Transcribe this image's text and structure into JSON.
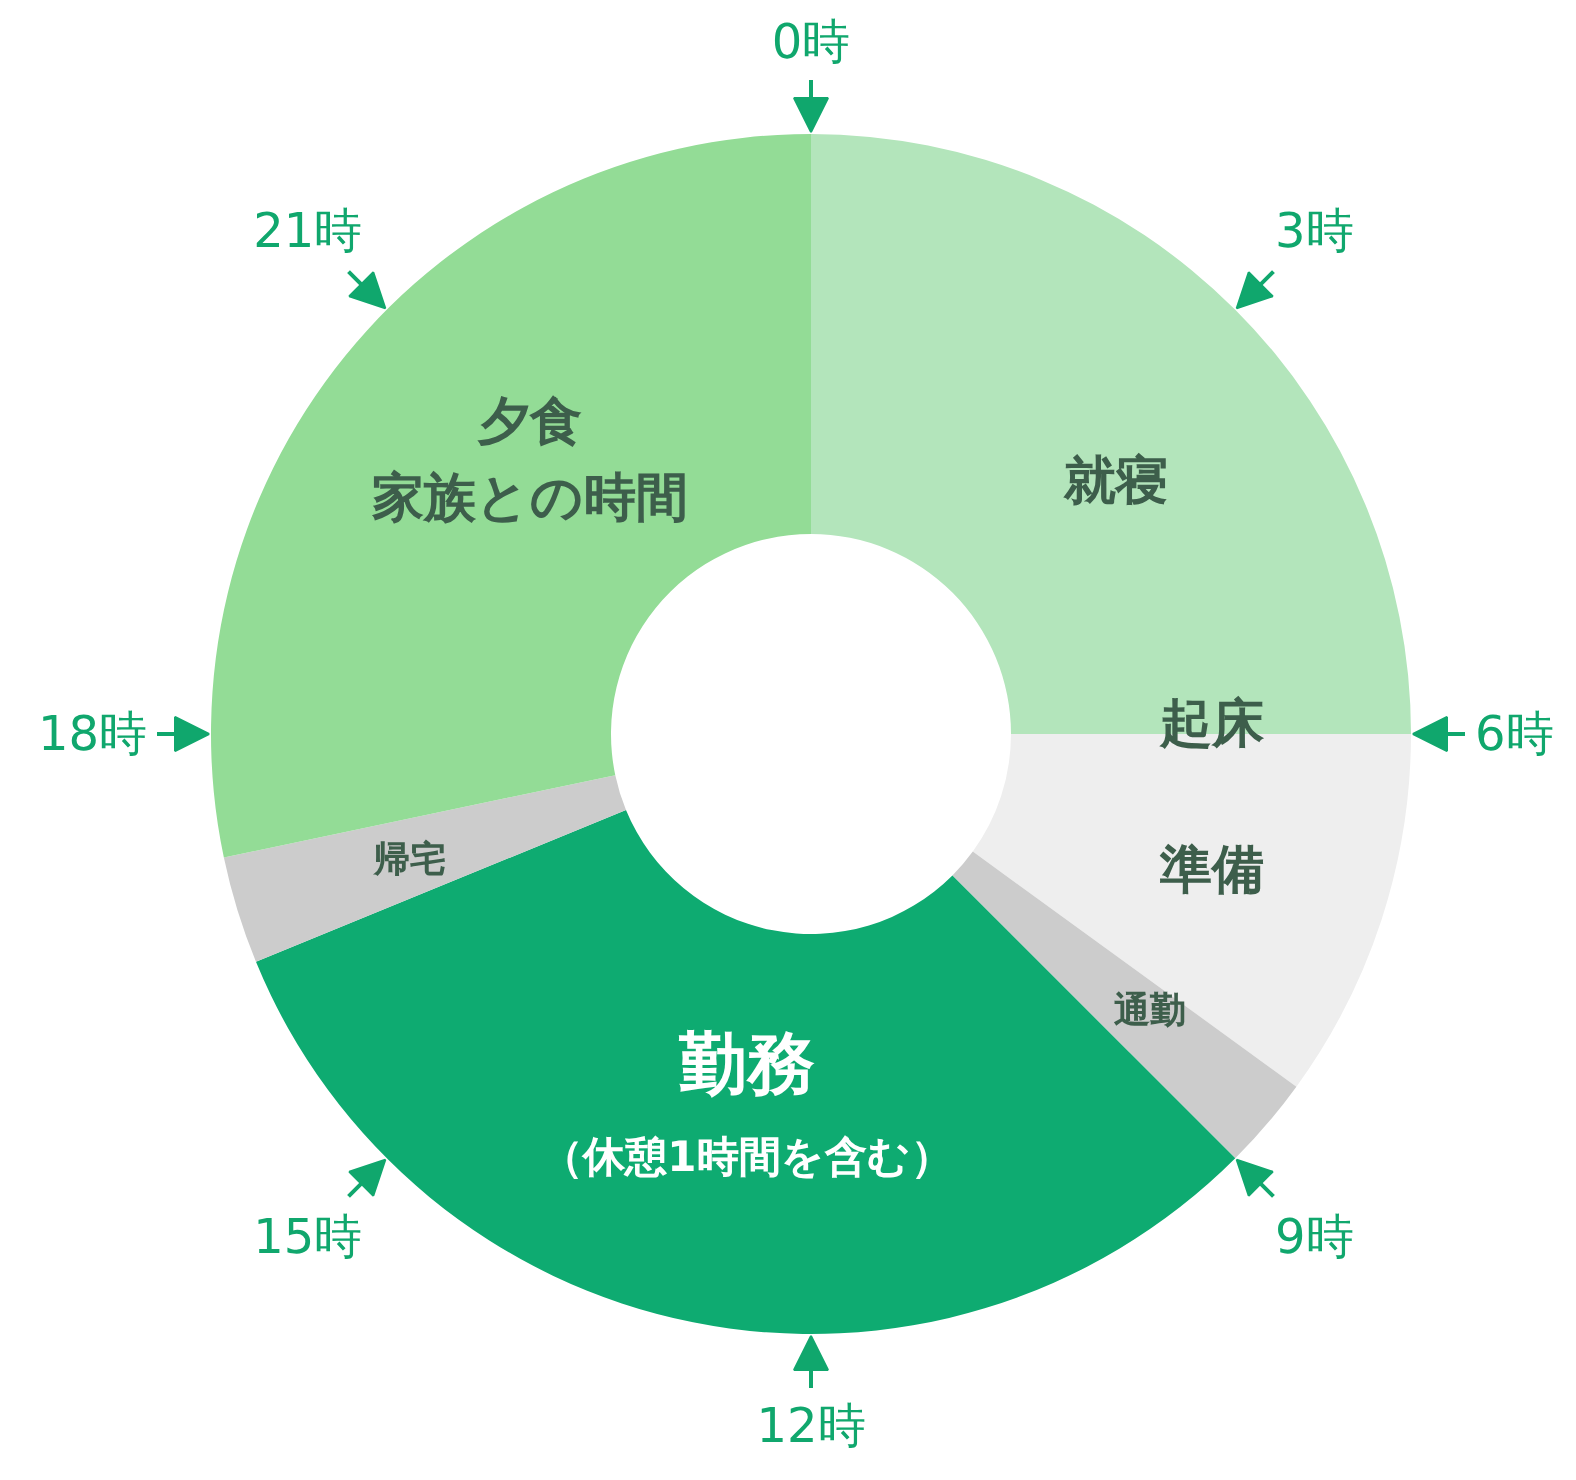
{
  "chart_data": {
    "type": "donut",
    "categories": [
      "就寝",
      "起床準備",
      "通勤",
      "勤務（休憩1時間を含む）",
      "帰宅",
      "夕食家族との時間"
    ],
    "values": [
      25,
      10,
      2.5,
      31.3,
      2.9,
      28.3
    ],
    "colors": [
      "#b3e5bb",
      "#eeeeee",
      "#cccccc",
      "#0eab71",
      "#cccccc",
      "#93dc96"
    ],
    "annotations": [
      "0時",
      "3時",
      "6時",
      "9時",
      "12時",
      "15時",
      "18時",
      "21時"
    ]
  }
}
